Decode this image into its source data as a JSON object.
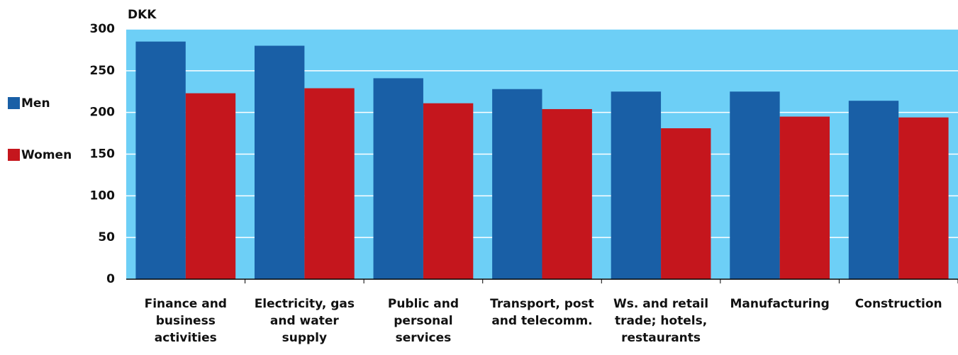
{
  "chart_data": {
    "type": "bar",
    "ylabel": "DKK",
    "categories": [
      "Finance and business activities",
      "Electricity, gas and water supply",
      "Public and personal services",
      "Transport, post and telecomm.",
      "Ws. and retail trade; hotels, restaurants",
      "Manufacturing",
      "Construction"
    ],
    "series": [
      {
        "name": "Men",
        "color": "#195fa6",
        "values": [
          285,
          280,
          241,
          228,
          225,
          225,
          214
        ]
      },
      {
        "name": "Women",
        "color": "#c5161d",
        "values": [
          223,
          229,
          211,
          204,
          181,
          195,
          194
        ]
      }
    ],
    "ylim": [
      0,
      300
    ],
    "yticks": [
      0,
      50,
      100,
      150,
      200,
      250,
      300
    ],
    "grid": true,
    "legend": "left"
  }
}
